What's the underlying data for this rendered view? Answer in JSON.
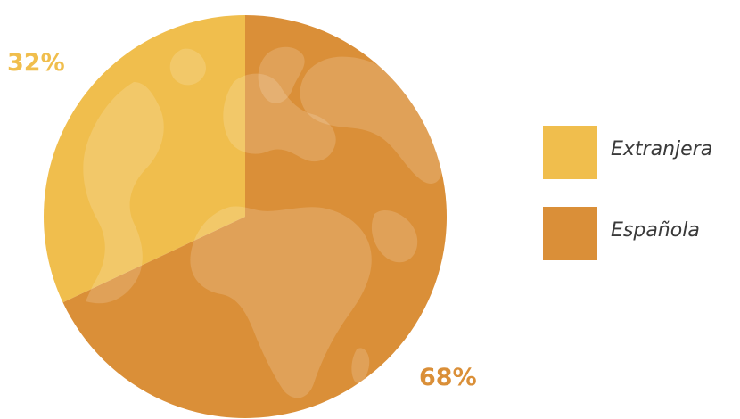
{
  "chart_data": {
    "type": "pie",
    "categories": [
      "Extranjera",
      "Española"
    ],
    "values": [
      32,
      68
    ],
    "value_labels": [
      "32%",
      "68%"
    ],
    "colors": [
      "#F0BE4D",
      "#DA8F38"
    ],
    "background_motif": "world-map",
    "legend_position": "right"
  },
  "legend": {
    "items": [
      {
        "label": "Extranjera",
        "color": "#F0BE4D"
      },
      {
        "label": "Española",
        "color": "#DA8F38"
      }
    ]
  },
  "slice_labels": {
    "extranjera": "32%",
    "espanola": "68%"
  }
}
